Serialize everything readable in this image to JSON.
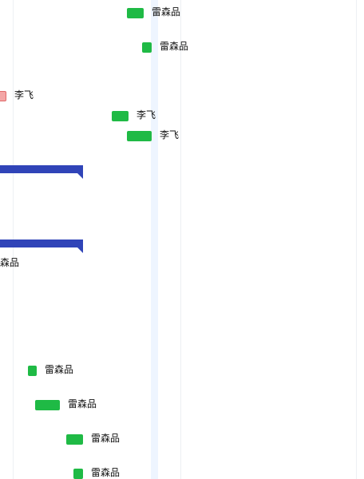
{
  "gantt": {
    "tasks": [
      {
        "assignee": "雷森品"
      },
      {
        "assignee": "雷森品"
      },
      {
        "assignee": "李飞"
      },
      {
        "assignee": "李飞"
      },
      {
        "assignee": "李飞"
      },
      {
        "assignee": "雷森品"
      },
      {
        "assignee": "雷森品"
      },
      {
        "assignee": "雷森品"
      },
      {
        "assignee": "雷森品"
      },
      {
        "assignee": "雷森品"
      }
    ],
    "colors": {
      "task_bar": "#1fba45",
      "task_bar_alt": "#f3a6a6",
      "summary_bar": "#3044b8",
      "today_band": "#eef5ff",
      "gridline": "#edf0f3"
    }
  }
}
